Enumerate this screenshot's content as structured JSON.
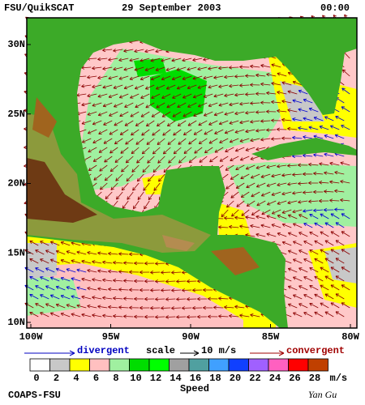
{
  "header": {
    "source": "FSU/QuikSCAT",
    "date": "29 September 2003",
    "time": "00:00"
  },
  "map": {
    "lat_ticks": [
      {
        "value": 10,
        "label": "10N"
      },
      {
        "value": 15,
        "label": "15N"
      },
      {
        "value": 20,
        "label": "20N"
      },
      {
        "value": 25,
        "label": "25N"
      },
      {
        "value": 30,
        "label": "30N"
      }
    ],
    "lon_ticks": [
      {
        "value": -100,
        "label": "100W"
      },
      {
        "value": -95,
        "label": "95W"
      },
      {
        "value": -90,
        "label": "90W"
      },
      {
        "value": -85,
        "label": "85W"
      },
      {
        "value": -80,
        "label": "80W"
      }
    ]
  },
  "legend": {
    "divergent": "divergent",
    "scale": "scale",
    "scale_value": "10 m/s",
    "convergent": "convergent"
  },
  "colorbar": {
    "ticks": [
      0,
      2,
      4,
      6,
      8,
      10,
      12,
      14,
      16,
      18,
      20,
      22,
      24,
      26,
      28
    ],
    "colors": [
      "#ffffff",
      "#c8c8c8",
      "#ffff00",
      "#ffc0c0",
      "#a0f0a0",
      "#00dd00",
      "#00ff00",
      "#a0a0a0",
      "#50a0a0",
      "#40a0ff",
      "#1040ff",
      "#a060ff",
      "#ff60c0",
      "#ff0000",
      "#c04000"
    ],
    "unit": "m/s",
    "label": "Speed"
  },
  "footer": {
    "credit": "COAPS-FSU",
    "author": "Yan Gu"
  }
}
